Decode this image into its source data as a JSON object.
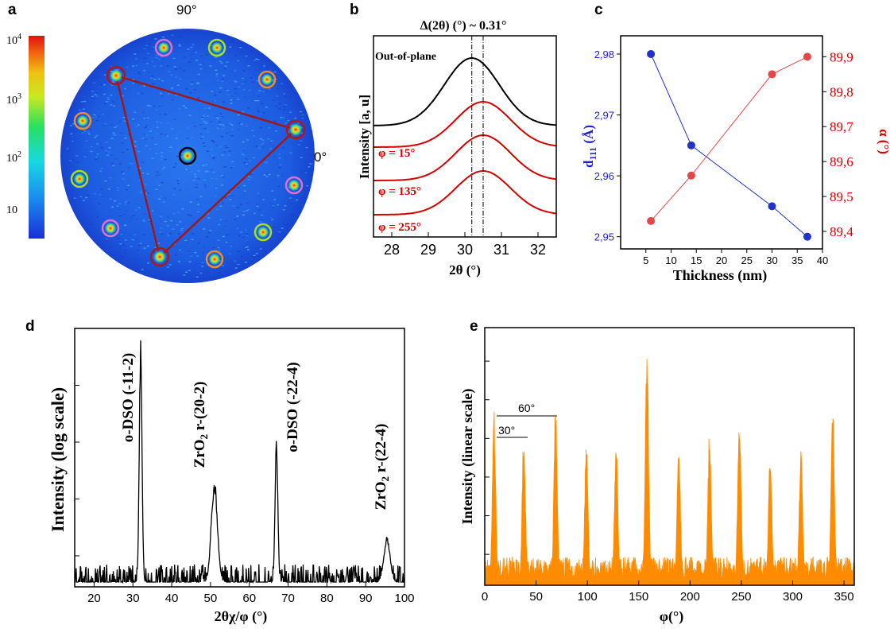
{
  "colors": {
    "black": "#000000",
    "red": "#d40000",
    "blue": "#2222cc",
    "blue_marker": "#2233cc",
    "red_marker": "#e24848",
    "orange": "#ff8c00",
    "pole_bg": "#1f5fe0",
    "triangle": "#a01818",
    "ring_orange": "#f08a2a",
    "ring_pink": "#e070d0",
    "ring_green": "#a8e020",
    "ring_red": "#b01818",
    "ring_black": "#000000"
  },
  "panels": {
    "a": {
      "label": "a",
      "angle_top": "90°",
      "angle_right": "0°",
      "colorbar_ticks": [
        {
          "base": "10",
          "exp": "4",
          "value": 10000
        },
        {
          "base": "10",
          "exp": "3",
          "value": 1000
        },
        {
          "base": "10",
          "exp": "2",
          "value": 100
        },
        {
          "base": "10",
          "exp": "",
          "value": 10
        }
      ],
      "spots": [
        {
          "ring": "ring_black",
          "name": "center"
        },
        {
          "ring": "ring_red",
          "name": "vertex"
        },
        {
          "ring": "ring_red",
          "name": "vertex"
        },
        {
          "ring": "ring_red",
          "name": "vertex"
        },
        {
          "ring": "ring_pink",
          "name": "pink"
        },
        {
          "ring": "ring_pink",
          "name": "pink"
        },
        {
          "ring": "ring_pink",
          "name": "pink"
        },
        {
          "ring": "ring_green",
          "name": "green"
        },
        {
          "ring": "ring_green",
          "name": "green"
        },
        {
          "ring": "ring_green",
          "name": "green"
        },
        {
          "ring": "ring_orange",
          "name": "orange"
        },
        {
          "ring": "ring_orange",
          "name": "orange"
        },
        {
          "ring": "ring_orange",
          "name": "orange"
        }
      ]
    },
    "b": {
      "label": "b",
      "top_annotation": "Δ(2θ) (°) ~ 0.31°",
      "curve_labels": [
        "Out-of-plane",
        "φ = 15°",
        "φ = 135°",
        "φ = 255°"
      ],
      "ylabel": "Intensity [a, u]",
      "xlabel": "2θ (°)"
    },
    "c": {
      "label": "c",
      "xlabel": "Thickness (nm)",
      "ylabel_left": "d",
      "ylabel_left_sub": "111",
      "ylabel_left_unit": " (Å)",
      "ylabel_right": "α (°)"
    },
    "d": {
      "label": "d",
      "xlabel": "2θχ/φ (°)",
      "ylabel": "Intensity (log scale)",
      "peak_labels": [
        "o-DSO (-11-2)",
        "ZrO",
        "2",
        " r-(20-2)",
        "o-DSO (-22-4)",
        "ZrO",
        "2",
        " r-(22-4)"
      ]
    },
    "e": {
      "label": "e",
      "xlabel": "φ(°)",
      "ylabel": "Intensity (linear scale)",
      "annot_60": "60°",
      "annot_30": "30°"
    }
  },
  "chart_data": [
    {
      "type": "heatmap",
      "panel": "a",
      "title": "",
      "colorbar_scale": "log",
      "colorbar_range": [
        3,
        15000
      ],
      "angular_labels": [
        "90°",
        "0°"
      ],
      "spots_phi_deg": [
        0,
        60,
        120,
        180,
        240,
        300
      ],
      "notes": "pole figure; three red-circled triangle vertices plus 3-fold sets"
    },
    {
      "type": "line",
      "panel": "b",
      "xlabel": "2θ (°)",
      "ylabel": "Intensity [a, u]",
      "xlim": [
        27.5,
        32.5
      ],
      "xticks": [
        28,
        29,
        30,
        31,
        32
      ],
      "series": [
        {
          "name": "Out-of-plane",
          "center": 30.19,
          "color": "black",
          "offset": 3
        },
        {
          "name": "φ = 15°",
          "center": 30.5,
          "color": "red",
          "offset": 2
        },
        {
          "name": "φ = 135°",
          "center": 30.5,
          "color": "red",
          "offset": 1
        },
        {
          "name": "φ = 255°",
          "center": 30.5,
          "color": "red",
          "offset": 0
        }
      ],
      "vlines": [
        30.19,
        30.5
      ]
    },
    {
      "type": "line",
      "panel": "c",
      "xlabel": "Thickness (nm)",
      "x": [
        6,
        14,
        30,
        37
      ],
      "xlim": [
        0,
        40
      ],
      "xticks": [
        5,
        10,
        15,
        20,
        25,
        30,
        35,
        40
      ],
      "series": [
        {
          "name": "d111 (Å)",
          "axis": "left",
          "values": [
            2.98,
            2.965,
            2.955,
            2.95
          ],
          "color": "blue"
        },
        {
          "name": "α (°)",
          "axis": "right",
          "values": [
            89.43,
            89.56,
            89.85,
            89.9
          ],
          "color": "red"
        }
      ],
      "ylim_left": [
        2.948,
        2.983
      ],
      "yticks_left": [
        "2,95",
        "2,96",
        "2,97",
        "2,98"
      ],
      "ylim_right": [
        89.35,
        89.96
      ],
      "yticks_right": [
        "89,4",
        "89,5",
        "89,6",
        "89,7",
        "89,8",
        "89,9"
      ]
    },
    {
      "type": "line",
      "panel": "d",
      "xlabel": "2θχ/φ (°)",
      "ylabel": "Intensity (log scale)",
      "xlim": [
        15,
        100
      ],
      "xticks": [
        20,
        30,
        40,
        50,
        60,
        70,
        80,
        90,
        100
      ],
      "peaks": [
        {
          "x": 32.0,
          "height": 0.97,
          "label": "o-DSO (-11-2)"
        },
        {
          "x": 51.0,
          "height": 0.41,
          "label": "ZrO2 r-(20-2)"
        },
        {
          "x": 67.0,
          "height": 0.6,
          "label": "o-DSO (-22-4)"
        },
        {
          "x": 95.5,
          "height": 0.18,
          "label": "ZrO2 r-(22-4)"
        }
      ]
    },
    {
      "type": "line",
      "panel": "e",
      "xlabel": "φ(°)",
      "ylabel": "Intensity (linear scale)",
      "xlim": [
        0,
        360
      ],
      "xticks": [
        0,
        50,
        100,
        150,
        200,
        250,
        300,
        350
      ],
      "peaks": [
        {
          "x": 9,
          "height": 0.69
        },
        {
          "x": 38,
          "height": 0.59
        },
        {
          "x": 69,
          "height": 0.73
        },
        {
          "x": 99,
          "height": 0.55
        },
        {
          "x": 128,
          "height": 0.57
        },
        {
          "x": 158,
          "height": 0.95
        },
        {
          "x": 189,
          "height": 0.55
        },
        {
          "x": 219,
          "height": 0.61
        },
        {
          "x": 248,
          "height": 0.71
        },
        {
          "x": 278,
          "height": 0.53
        },
        {
          "x": 308,
          "height": 0.55
        },
        {
          "x": 339,
          "height": 0.68
        }
      ],
      "annotations": [
        "60°",
        "30°"
      ]
    }
  ]
}
